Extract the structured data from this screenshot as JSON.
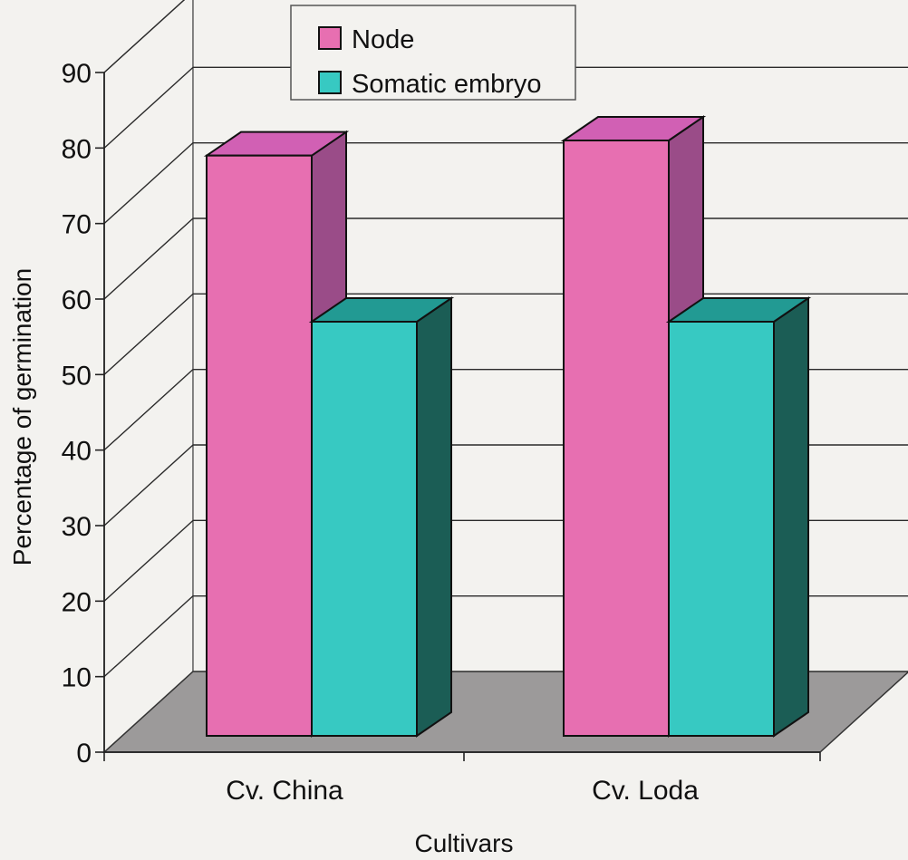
{
  "chart_data": {
    "type": "bar",
    "categories": [
      "Cv. China",
      "Cv. Loda"
    ],
    "series": [
      {
        "name": "Node",
        "values": [
          79,
          81
        ]
      },
      {
        "name": "Somatic embryo",
        "values": [
          57,
          57
        ]
      }
    ],
    "ylabel": "Percentage of germination",
    "xlabel": "Cultivars",
    "yticks": [
      "0",
      "10",
      "20",
      "30",
      "40",
      "50",
      "60",
      "70",
      "80",
      "90"
    ],
    "ylim": [
      0,
      90
    ],
    "grid": true,
    "legend": "top",
    "style": "3d-column",
    "colors": {
      "Node": {
        "front": "#e76fb1",
        "top": "#d160b4",
        "side": "#9a4c88"
      },
      "Somatic embryo": {
        "front": "#37c9c2",
        "top": "#229a93",
        "side": "#1b5d55"
      },
      "floor": "#9c9a9a",
      "walls": "#f3f2ef",
      "gridline": "#2a2a2a"
    }
  }
}
